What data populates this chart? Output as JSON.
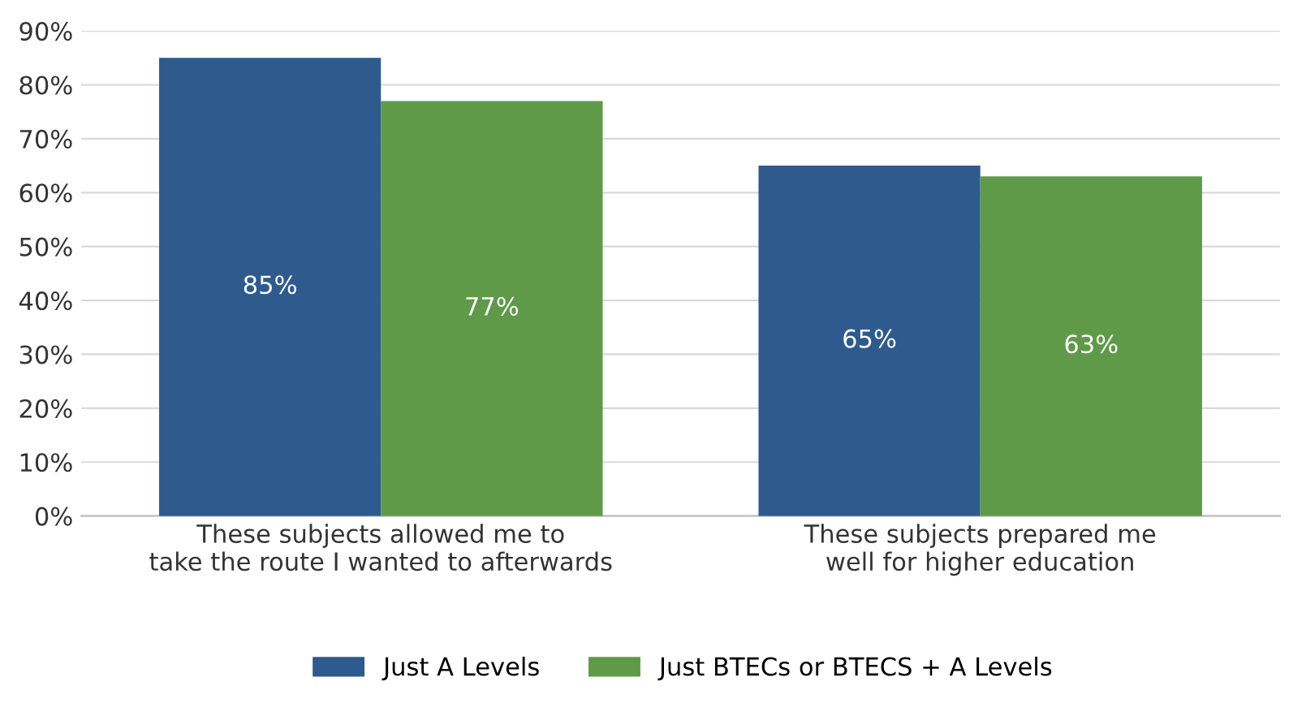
{
  "chart_data": {
    "type": "bar",
    "categories": [
      "These subjects allowed me to\ntake the route I wanted to afterwards",
      "These subjects prepared me\nwell for higher education"
    ],
    "series": [
      {
        "name": "Just A Levels",
        "color": "#2e5a8e",
        "values": [
          85,
          65
        ],
        "value_labels": [
          "85%",
          "65%"
        ]
      },
      {
        "name": "Just BTECs or BTECS + A Levels",
        "color": "#5e9a48",
        "values": [
          77,
          63
        ],
        "value_labels": [
          "77%",
          "63%"
        ]
      }
    ],
    "ylim": [
      0,
      90
    ],
    "yticks": [
      {
        "value": 0,
        "label": "0%"
      },
      {
        "value": 10,
        "label": "10%"
      },
      {
        "value": 20,
        "label": "20%"
      },
      {
        "value": 30,
        "label": "30%"
      },
      {
        "value": 40,
        "label": "40%"
      },
      {
        "value": 50,
        "label": "50%"
      },
      {
        "value": 60,
        "label": "60%"
      },
      {
        "value": 70,
        "label": "70%"
      },
      {
        "value": 80,
        "label": "80%"
      },
      {
        "value": 90,
        "label": "90%"
      }
    ],
    "grid": "y",
    "legend": "bottom"
  }
}
